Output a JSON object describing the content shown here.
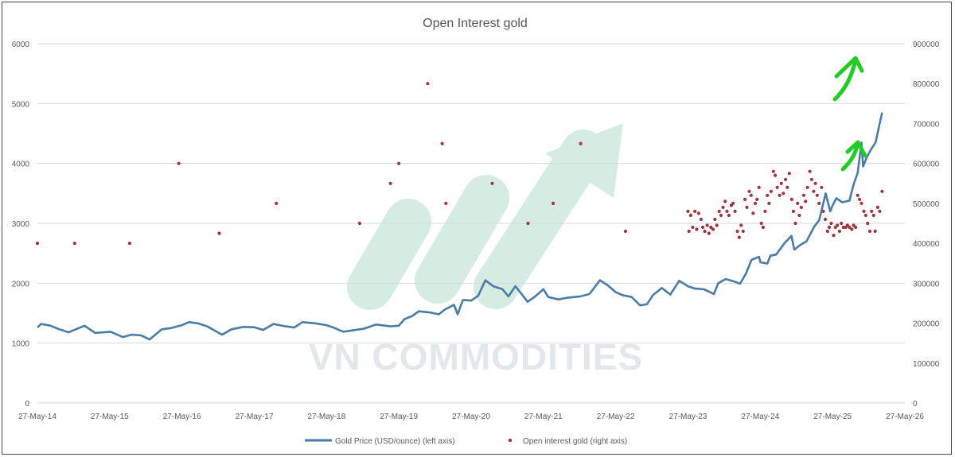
{
  "chart_data": {
    "type": "line",
    "title": "Open Interest gold",
    "x_tick_labels": [
      "27-May-14",
      "27-May-15",
      "27-May-16",
      "27-May-17",
      "27-May-18",
      "27-May-19",
      "27-May-20",
      "27-May-21",
      "27-May-22",
      "27-May-23",
      "27-May-24",
      "27-May-25",
      "27-May-26"
    ],
    "y_left": {
      "ticks": [
        "0",
        "1000",
        "2000",
        "3000",
        "4000",
        "5000",
        "6000"
      ],
      "ylim": [
        0,
        6000
      ]
    },
    "y_right": {
      "ticks": [
        "0",
        "100000",
        "200000",
        "300000",
        "400000",
        "500000",
        "600000",
        "700000",
        "800000",
        "900000"
      ],
      "ylim": [
        0,
        900000
      ]
    },
    "grid": true,
    "legend_position": "bottom",
    "series": [
      {
        "name": "Gold Price (USD/ounce) (left axis)",
        "kind": "line",
        "axis": "left",
        "color": "#4a7ca8",
        "points": [
          [
            "2014-05-27",
            1260
          ],
          [
            "2014-06-15",
            1320
          ],
          [
            "2014-08-01",
            1290
          ],
          [
            "2014-09-15",
            1230
          ],
          [
            "2014-11-01",
            1180
          ],
          [
            "2015-01-20",
            1290
          ],
          [
            "2015-03-15",
            1170
          ],
          [
            "2015-06-01",
            1190
          ],
          [
            "2015-08-01",
            1100
          ],
          [
            "2015-09-15",
            1140
          ],
          [
            "2015-11-01",
            1130
          ],
          [
            "2015-12-15",
            1060
          ],
          [
            "2016-02-15",
            1230
          ],
          [
            "2016-04-01",
            1250
          ],
          [
            "2016-05-27",
            1300
          ],
          [
            "2016-07-01",
            1350
          ],
          [
            "2016-08-15",
            1330
          ],
          [
            "2016-10-01",
            1280
          ],
          [
            "2016-12-15",
            1140
          ],
          [
            "2017-02-01",
            1230
          ],
          [
            "2017-04-01",
            1270
          ],
          [
            "2017-05-27",
            1265
          ],
          [
            "2017-07-10",
            1220
          ],
          [
            "2017-09-01",
            1320
          ],
          [
            "2017-11-01",
            1280
          ],
          [
            "2017-12-15",
            1260
          ],
          [
            "2018-01-25",
            1350
          ],
          [
            "2018-04-01",
            1330
          ],
          [
            "2018-05-27",
            1300
          ],
          [
            "2018-07-01",
            1260
          ],
          [
            "2018-08-20",
            1190
          ],
          [
            "2018-10-01",
            1210
          ],
          [
            "2018-12-01",
            1240
          ],
          [
            "2019-02-01",
            1310
          ],
          [
            "2019-04-15",
            1280
          ],
          [
            "2019-05-27",
            1290
          ],
          [
            "2019-06-25",
            1400
          ],
          [
            "2019-08-01",
            1450
          ],
          [
            "2019-09-05",
            1530
          ],
          [
            "2019-11-01",
            1510
          ],
          [
            "2019-12-15",
            1480
          ],
          [
            "2020-01-15",
            1560
          ],
          [
            "2020-03-01",
            1640
          ],
          [
            "2020-03-19",
            1480
          ],
          [
            "2020-04-15",
            1720
          ],
          [
            "2020-05-27",
            1710
          ],
          [
            "2020-07-01",
            1790
          ],
          [
            "2020-08-07",
            2050
          ],
          [
            "2020-09-15",
            1950
          ],
          [
            "2020-11-01",
            1900
          ],
          [
            "2020-12-01",
            1780
          ],
          [
            "2021-01-05",
            1950
          ],
          [
            "2021-03-08",
            1690
          ],
          [
            "2021-04-15",
            1780
          ],
          [
            "2021-05-27",
            1900
          ],
          [
            "2021-06-20",
            1770
          ],
          [
            "2021-08-10",
            1730
          ],
          [
            "2021-10-01",
            1760
          ],
          [
            "2021-12-01",
            1780
          ],
          [
            "2022-01-15",
            1820
          ],
          [
            "2022-03-08",
            2050
          ],
          [
            "2022-04-15",
            1970
          ],
          [
            "2022-05-27",
            1850
          ],
          [
            "2022-07-01",
            1800
          ],
          [
            "2022-08-15",
            1770
          ],
          [
            "2022-09-27",
            1630
          ],
          [
            "2022-11-01",
            1650
          ],
          [
            "2022-12-01",
            1800
          ],
          [
            "2023-01-15",
            1920
          ],
          [
            "2023-02-27",
            1810
          ],
          [
            "2023-04-13",
            2040
          ],
          [
            "2023-05-27",
            1950
          ],
          [
            "2023-07-01",
            1910
          ],
          [
            "2023-08-15",
            1900
          ],
          [
            "2023-10-05",
            1820
          ],
          [
            "2023-10-27",
            2000
          ],
          [
            "2023-12-04",
            2070
          ],
          [
            "2024-01-15",
            2030
          ],
          [
            "2024-02-14",
            1990
          ],
          [
            "2024-03-15",
            2160
          ],
          [
            "2024-04-12",
            2390
          ],
          [
            "2024-05-20",
            2440
          ],
          [
            "2024-05-27",
            2350
          ],
          [
            "2024-07-01",
            2330
          ],
          [
            "2024-07-17",
            2460
          ],
          [
            "2024-08-15",
            2480
          ],
          [
            "2024-09-26",
            2670
          ],
          [
            "2024-10-31",
            2790
          ],
          [
            "2024-11-14",
            2560
          ],
          [
            "2024-12-15",
            2640
          ],
          [
            "2025-01-15",
            2700
          ],
          [
            "2025-02-24",
            2950
          ],
          [
            "2025-03-20",
            3050
          ],
          [
            "2025-04-22",
            3500
          ],
          [
            "2025-05-15",
            3200
          ],
          [
            "2025-05-27",
            3300
          ],
          [
            "2025-06-15",
            3420
          ],
          [
            "2025-07-15",
            3350
          ],
          [
            "2025-08-20",
            3380
          ],
          [
            "2025-09-10",
            3650
          ],
          [
            "2025-10-01",
            3850
          ],
          [
            "2025-10-20",
            4350
          ],
          [
            "2025-10-28",
            3950
          ],
          [
            "2025-11-15",
            4100
          ],
          [
            "2025-12-10",
            4250
          ],
          [
            "2025-12-30",
            4350
          ],
          [
            "2026-01-15",
            4600
          ],
          [
            "2026-02-01",
            4850
          ]
        ]
      },
      {
        "name": "Open interest gold (right axis)",
        "kind": "scatter",
        "axis": "right",
        "color": "#a1343e",
        "points": [
          [
            "2014-05-27",
            400000
          ],
          [
            "2014-12-01",
            400000
          ],
          [
            "2015-09-05",
            400000
          ],
          [
            "2016-05-10",
            600000
          ],
          [
            "2016-12-01",
            425000
          ],
          [
            "2017-09-15",
            500000
          ],
          [
            "2018-11-10",
            450000
          ],
          [
            "2019-04-15",
            550000
          ],
          [
            "2019-05-27",
            600000
          ],
          [
            "2019-10-20",
            800000
          ],
          [
            "2020-01-01",
            650000
          ],
          [
            "2020-01-20",
            500000
          ],
          [
            "2020-09-10",
            550000
          ],
          [
            "2021-03-10",
            450000
          ],
          [
            "2021-07-15",
            500000
          ],
          [
            "2021-12-01",
            650000
          ],
          [
            "2022-07-15",
            430000
          ],
          [
            "2023-05-27",
            480000
          ],
          [
            "2023-06-01",
            430000
          ],
          [
            "2023-06-10",
            470000
          ],
          [
            "2023-06-20",
            440000
          ],
          [
            "2023-07-01",
            480000
          ],
          [
            "2023-07-10",
            435000
          ],
          [
            "2023-07-20",
            475000
          ],
          [
            "2023-08-01",
            460000
          ],
          [
            "2023-08-10",
            440000
          ],
          [
            "2023-08-20",
            430000
          ],
          [
            "2023-09-01",
            445000
          ],
          [
            "2023-09-10",
            425000
          ],
          [
            "2023-09-20",
            440000
          ],
          [
            "2023-10-01",
            435000
          ],
          [
            "2023-10-10",
            460000
          ],
          [
            "2023-10-20",
            445000
          ],
          [
            "2023-11-01",
            480000
          ],
          [
            "2023-11-10",
            470000
          ],
          [
            "2023-11-20",
            490000
          ],
          [
            "2023-12-01",
            505000
          ],
          [
            "2023-12-10",
            480000
          ],
          [
            "2023-12-20",
            470000
          ],
          [
            "2024-01-01",
            495000
          ],
          [
            "2024-01-10",
            500000
          ],
          [
            "2024-01-20",
            480000
          ],
          [
            "2024-02-01",
            430000
          ],
          [
            "2024-02-10",
            415000
          ],
          [
            "2024-02-20",
            445000
          ],
          [
            "2024-03-01",
            430000
          ],
          [
            "2024-03-10",
            510000
          ],
          [
            "2024-03-20",
            490000
          ],
          [
            "2024-04-01",
            530000
          ],
          [
            "2024-04-10",
            520000
          ],
          [
            "2024-04-20",
            475000
          ],
          [
            "2024-05-01",
            500000
          ],
          [
            "2024-05-10",
            510000
          ],
          [
            "2024-05-20",
            540000
          ],
          [
            "2024-06-01",
            450000
          ],
          [
            "2024-06-10",
            440000
          ],
          [
            "2024-06-20",
            480000
          ],
          [
            "2024-07-01",
            520000
          ],
          [
            "2024-07-10",
            500000
          ],
          [
            "2024-07-20",
            530000
          ],
          [
            "2024-08-01",
            580000
          ],
          [
            "2024-08-10",
            570000
          ],
          [
            "2024-08-20",
            540000
          ],
          [
            "2024-09-01",
            520000
          ],
          [
            "2024-09-10",
            550000
          ],
          [
            "2024-09-20",
            525000
          ],
          [
            "2024-10-01",
            560000
          ],
          [
            "2024-10-10",
            540000
          ],
          [
            "2024-10-20",
            575000
          ],
          [
            "2024-11-01",
            510000
          ],
          [
            "2024-11-10",
            480000
          ],
          [
            "2024-11-20",
            450000
          ],
          [
            "2024-12-01",
            500000
          ],
          [
            "2024-12-10",
            470000
          ],
          [
            "2024-12-20",
            490000
          ],
          [
            "2025-01-01",
            520000
          ],
          [
            "2025-01-10",
            505000
          ],
          [
            "2025-01-20",
            540000
          ],
          [
            "2025-02-01",
            580000
          ],
          [
            "2025-02-10",
            560000
          ],
          [
            "2025-02-20",
            530000
          ],
          [
            "2025-03-01",
            550000
          ],
          [
            "2025-03-10",
            520000
          ],
          [
            "2025-03-20",
            500000
          ],
          [
            "2025-04-01",
            540000
          ],
          [
            "2025-04-10",
            480000
          ],
          [
            "2025-04-20",
            460000
          ],
          [
            "2025-05-01",
            430000
          ],
          [
            "2025-05-10",
            440000
          ],
          [
            "2025-05-20",
            450000
          ],
          [
            "2025-06-01",
            420000
          ],
          [
            "2025-06-10",
            440000
          ],
          [
            "2025-06-20",
            445000
          ],
          [
            "2025-07-01",
            430000
          ],
          [
            "2025-07-10",
            450000
          ],
          [
            "2025-07-20",
            440000
          ],
          [
            "2025-08-01",
            440000
          ],
          [
            "2025-08-10",
            445000
          ],
          [
            "2025-08-20",
            440000
          ],
          [
            "2025-09-01",
            435000
          ],
          [
            "2025-09-10",
            445000
          ],
          [
            "2025-09-20",
            440000
          ],
          [
            "2025-10-01",
            520000
          ],
          [
            "2025-10-10",
            510000
          ],
          [
            "2025-10-20",
            500000
          ],
          [
            "2025-11-01",
            480000
          ],
          [
            "2025-11-10",
            470000
          ],
          [
            "2025-11-20",
            450000
          ],
          [
            "2025-12-01",
            430000
          ],
          [
            "2025-12-10",
            480000
          ],
          [
            "2025-12-20",
            470000
          ],
          [
            "2025-12-28",
            430000
          ],
          [
            "2026-01-10",
            490000
          ],
          [
            "2026-01-20",
            480000
          ],
          [
            "2026-02-01",
            530000
          ]
        ]
      }
    ]
  },
  "watermark": {
    "text": "VN COMMODITIES",
    "color": "#e2e7ea",
    "logo_color": "#c3e2d4"
  },
  "annotations": {
    "arrow_color": "#22cc22"
  }
}
